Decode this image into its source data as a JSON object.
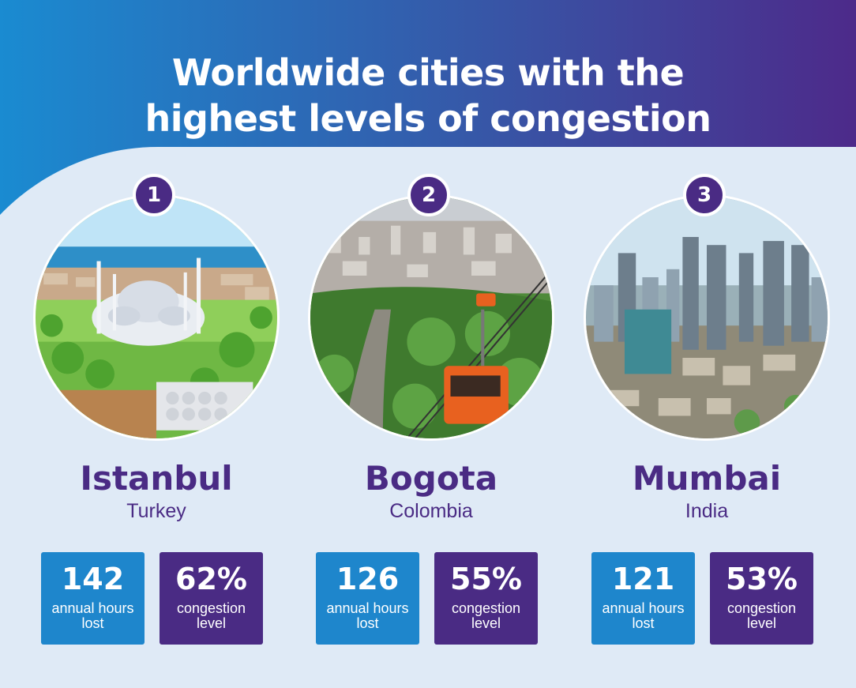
{
  "title": {
    "line1": "Worldwide cities with the",
    "line2": "highest levels of congestion"
  },
  "colors": {
    "header_gradient_start": "#1a8bd1",
    "header_gradient_end": "#4d2a8a",
    "background": "#dfeaf6",
    "purple": "#4a2b84",
    "blue": "#1e86cc"
  },
  "cities": [
    {
      "rank": "1",
      "name": "Istanbul",
      "country": "Turkey",
      "photo_icon": "mosque-photo",
      "hours_lost": "142",
      "hours_label": "annual hours lost",
      "congestion": "62%",
      "congestion_label": "congestion level"
    },
    {
      "rank": "2",
      "name": "Bogota",
      "country": "Colombia",
      "photo_icon": "cable-car-photo",
      "hours_lost": "126",
      "hours_label": "annual hours lost",
      "congestion": "55%",
      "congestion_label": "congestion level"
    },
    {
      "rank": "3",
      "name": "Mumbai",
      "country": "India",
      "photo_icon": "skyline-photo",
      "hours_lost": "121",
      "hours_label": "annual hours lost",
      "congestion": "53%",
      "congestion_label": "congestion level"
    }
  ]
}
